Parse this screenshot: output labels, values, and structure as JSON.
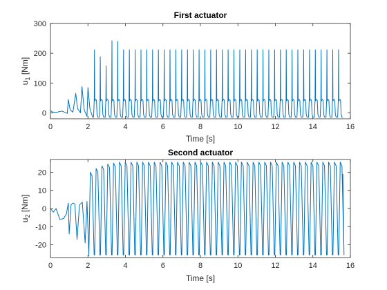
{
  "chart_data": [
    {
      "type": "line",
      "title": "First actuator",
      "xlabel": "Time [s]",
      "ylabel_main": "u",
      "ylabel_sub": "1",
      "ylabel_unit": " [Nm]",
      "xlim": [
        0,
        16
      ],
      "ylim": [
        -20,
        300
      ],
      "xticks": [
        0,
        2,
        4,
        6,
        8,
        10,
        12,
        14,
        16
      ],
      "yticks": [
        0,
        100,
        200,
        300
      ],
      "grid": false,
      "line_color": "#0072BD",
      "x_end": 15.6,
      "series": [
        {
          "values_note": "",
          "transient": [
            [
              0.0,
              8
            ],
            [
              0.1,
              3
            ],
            [
              0.3,
              1
            ],
            [
              0.6,
              6
            ],
            [
              0.9,
              -2
            ],
            [
              0.95,
              45
            ],
            [
              1.05,
              10
            ],
            [
              1.2,
              2
            ],
            [
              1.35,
              65
            ],
            [
              1.45,
              14
            ],
            [
              1.6,
              0
            ],
            [
              1.68,
              88
            ],
            [
              1.8,
              10
            ],
            [
              1.95,
              -12
            ],
            [
              2.0,
              85
            ],
            [
              2.1,
              15
            ],
            [
              2.25,
              -15
            ]
          ],
          "steady_base": -15,
          "steady_mid": 45,
          "steady_peak": 212,
          "cycle_start": 2.3,
          "cycle_period": 0.31,
          "early_peaks": [
            [
              2.35,
              212
            ],
            [
              2.65,
              188
            ],
            [
              2.92,
              158
            ],
            [
              3.2,
              242
            ],
            [
              3.45,
              240
            ],
            [
              3.72,
              212
            ]
          ]
        }
      ]
    },
    {
      "type": "line",
      "title": "Second actuator",
      "xlabel": "Time [s]",
      "ylabel_main": "u",
      "ylabel_sub": "2",
      "ylabel_unit": " [Nm]",
      "xlim": [
        0,
        16
      ],
      "ylim": [
        -27,
        27
      ],
      "xticks": [
        0,
        2,
        4,
        6,
        8,
        10,
        12,
        14,
        16
      ],
      "yticks": [
        -20,
        -10,
        0,
        10,
        20
      ],
      "grid": false,
      "line_color": "#0072BD",
      "x_end": 15.6,
      "series": [
        {
          "transient": [
            [
              0.0,
              0
            ],
            [
              0.15,
              -2
            ],
            [
              0.3,
              0
            ],
            [
              0.5,
              -6
            ],
            [
              0.7,
              -5.5
            ],
            [
              0.85,
              -3
            ],
            [
              0.95,
              3
            ],
            [
              1.0,
              -14
            ],
            [
              1.1,
              2
            ],
            [
              1.2,
              3
            ],
            [
              1.3,
              2.5
            ],
            [
              1.42,
              -17
            ],
            [
              1.55,
              2
            ],
            [
              1.7,
              3.5
            ],
            [
              1.85,
              -19
            ],
            [
              1.95,
              4
            ],
            [
              2.05,
              -26
            ]
          ],
          "cycle_start": 2.05,
          "cycle_period": 0.31,
          "amp_high": 25.5,
          "amp_low": -25.5,
          "first_peaks": [
            20,
            22,
            23.5,
            24.5,
            25
          ]
        }
      ]
    }
  ]
}
